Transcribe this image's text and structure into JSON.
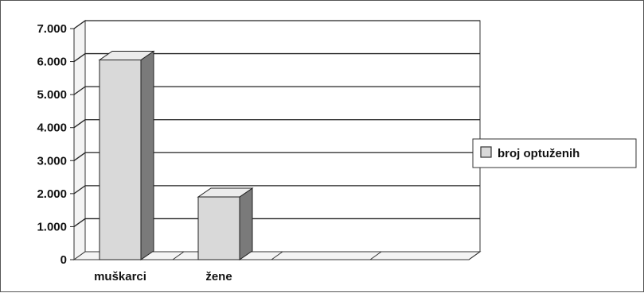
{
  "chart_data": {
    "type": "bar",
    "categories": [
      "muškarci",
      "žene",
      "",
      ""
    ],
    "series": [
      {
        "name": "broj optuženih",
        "values": [
          6050,
          1900,
          null,
          null
        ]
      }
    ],
    "ylim": [
      0,
      7000
    ],
    "yticks": [
      "0",
      "1.000",
      "2.000",
      "3.000",
      "4.000",
      "5.000",
      "6.000",
      "7.000"
    ],
    "grid": true,
    "legend_position": "right",
    "title": "",
    "xlabel": "",
    "ylabel": ""
  },
  "colors": {
    "bar_front": "#d9d9d9",
    "bar_side": "#7a7a7a",
    "bar_top": "#ececec",
    "grid": "#222222",
    "wall": "#f4f4f4"
  }
}
